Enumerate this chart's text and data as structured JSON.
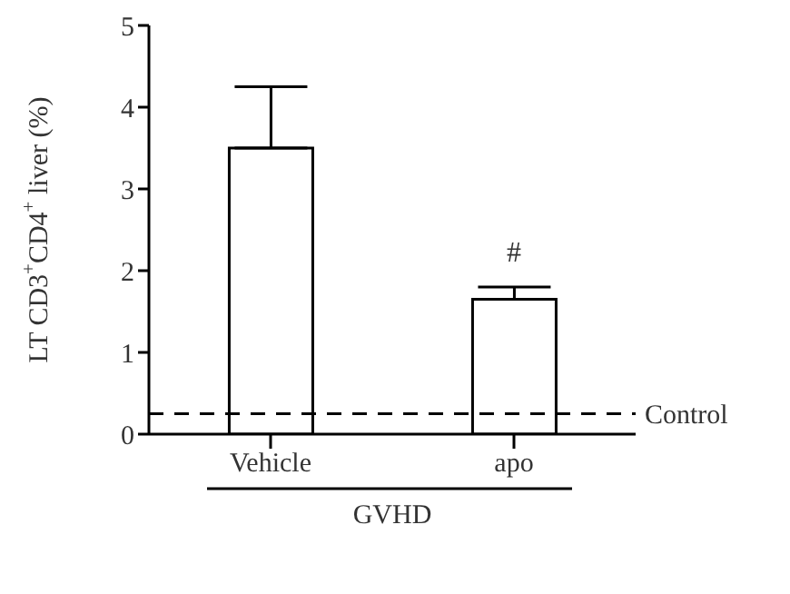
{
  "chart_data": {
    "type": "bar",
    "categories": [
      "Vehicle",
      "apo"
    ],
    "values": [
      3.5,
      1.65
    ],
    "errors": [
      [
        3.5,
        4.25
      ],
      [
        1.65,
        1.8
      ]
    ],
    "color": "#ffffff",
    "ylabel": "LT CD3$^{+}$CD4$^{+}$ liver (%)",
    "xlabel": "GVHD",
    "ylim": [
      0,
      5
    ],
    "yticks": [
      0,
      1,
      2,
      3,
      4,
      5
    ],
    "grid": false,
    "legend": false,
    "ref_lines": [
      {
        "axis": "y",
        "value": 0.25,
        "label": "Control",
        "color": "#000000",
        "line_style": "dashed"
      }
    ],
    "annotations": [
      {
        "text": "#",
        "x": "apo",
        "y": 1.8
      }
    ]
  }
}
